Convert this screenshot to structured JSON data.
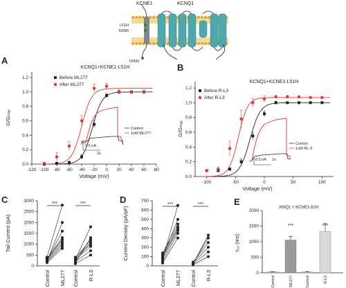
{
  "figure": {
    "topology": {
      "kcne1_label": "KCNE1",
      "kcnq1_label": "KCNQ1",
      "mutation_label": "L51H",
      "mutation_label2": "G60R",
      "bottom_label": "D90N"
    },
    "panels": [
      "A",
      "B",
      "C",
      "D",
      "E"
    ]
  },
  "chart_data": [
    {
      "panel": "A",
      "type": "scatter",
      "title": "KCNQ1+KCNE1-L51H",
      "xlabel": "Voltage (mV)",
      "ylabel": "G/Gₘₐₓ",
      "xlim": [
        -120,
        80
      ],
      "ylim": [
        0,
        1.2
      ],
      "xticks": [
        "-120",
        "-100",
        "-80",
        "-60",
        "-40",
        "-20",
        "0",
        "20",
        "40",
        "60",
        "80"
      ],
      "yticks": [
        "0.0",
        "0.2",
        "0.4",
        "0.6",
        "0.8",
        "1.0",
        "1.2"
      ],
      "legend": "top-left",
      "series": [
        {
          "name": "Before ML277",
          "color": "#222222",
          "x": [
            -100,
            -80,
            -60,
            -40,
            -20,
            0,
            20,
            40,
            60
          ],
          "y": [
            0.0,
            0.01,
            0.02,
            0.1,
            0.55,
            0.95,
            1.0,
            1.0,
            1.0
          ],
          "v50": -23,
          "k": 8
        },
        {
          "name": "After ML277",
          "color": "#e8332a",
          "x": [
            -100,
            -80,
            -60,
            -40,
            -20,
            0,
            20,
            40,
            60
          ],
          "y": [
            0.01,
            0.1,
            0.25,
            0.6,
            1.05,
            1.08,
            1.0,
            1.0,
            1.0
          ],
          "v50": -40,
          "k": 8
        }
      ],
      "inset": {
        "legend": [
          "Control",
          "1uM ML277"
        ],
        "scale_current": "0.5 nA",
        "scale_time": "1s"
      }
    },
    {
      "panel": "B",
      "type": "scatter",
      "title": "KCNQ1+KCNE1-L51H",
      "xlabel": "Voltage (mV)",
      "ylabel": "G/Gₘₐₓ",
      "xlim": [
        -120,
        120
      ],
      "ylim": [
        0,
        1.2
      ],
      "xticks": [
        "-100",
        "-50",
        "0",
        "50",
        "100"
      ],
      "yticks": [
        "0.0",
        "0.2",
        "0.4",
        "0.6",
        "0.8",
        "1.0",
        "1.2"
      ],
      "legend": "top-left",
      "series": [
        {
          "name": "Before R-L3",
          "color": "#222222",
          "x": [
            -100,
            -80,
            -60,
            -40,
            -20,
            0,
            20,
            40,
            60,
            80,
            100
          ],
          "y": [
            0.08,
            0.08,
            0.1,
            0.2,
            0.55,
            0.85,
            1.0,
            1.0,
            1.0,
            1.0,
            1.0
          ],
          "v50": -25,
          "k": 9
        },
        {
          "name": "After R-L3",
          "color": "#e8332a",
          "x": [
            -100,
            -80,
            -60,
            -40,
            -20,
            0,
            20,
            40,
            60,
            80,
            100
          ],
          "y": [
            0.08,
            0.1,
            0.38,
            0.78,
            1.0,
            1.05,
            1.08,
            1.08,
            1.08,
            1.07,
            1.07
          ],
          "v50": -45,
          "k": 8
        }
      ],
      "inset": {
        "legend": [
          "Control",
          "1uM RL-3"
        ],
        "scale_current": "0.5 nA",
        "scale_time": "1s"
      }
    },
    {
      "panel": "C",
      "type": "scatter",
      "xlabel": "",
      "ylabel": "Tail Current (pA)",
      "ylim": [
        0,
        3000
      ],
      "yticks": [
        "0",
        "500",
        "1000",
        "1500",
        "2000",
        "2500",
        "3000"
      ],
      "significance": [
        "***",
        "***"
      ],
      "pairs": [
        {
          "categories": [
            "Control",
            "ML277"
          ],
          "before": [
            150,
            200,
            250,
            300,
            350,
            300,
            250,
            200,
            400
          ],
          "after": [
            800,
            900,
            1000,
            1100,
            1200,
            1300,
            1600,
            2000,
            2800
          ]
        },
        {
          "categories": [
            "Control",
            "R-L3"
          ],
          "before": [
            100,
            200,
            300,
            400,
            250,
            350,
            150,
            300
          ],
          "after": [
            500,
            700,
            900,
            1000,
            1100,
            1200,
            1300,
            1800
          ]
        }
      ]
    },
    {
      "panel": "D",
      "type": "scatter",
      "xlabel": "",
      "ylabel": "Current Density (pA/pF)",
      "ylim": [
        0,
        700
      ],
      "yticks": [
        "0",
        "100",
        "200",
        "300",
        "400",
        "500",
        "600",
        "700"
      ],
      "significance": [
        "***",
        "***"
      ],
      "pairs": [
        {
          "categories": [
            "Control",
            "ML277"
          ],
          "before": [
            30,
            50,
            80,
            100,
            120,
            140,
            90,
            70
          ],
          "after": [
            300,
            350,
            380,
            400,
            420,
            450,
            500,
            650
          ]
        },
        {
          "categories": [
            "Control",
            "R-L3"
          ],
          "before": [
            10,
            20,
            30,
            40,
            30,
            20
          ],
          "after": [
            100,
            150,
            200,
            250,
            300,
            330
          ]
        }
      ]
    },
    {
      "panel": "E",
      "type": "bar",
      "title": "KNQ1 + KCNE1-51H",
      "xlabel": "",
      "ylabel": "τ₅₀ (ms)",
      "ylim": [
        0,
        2000
      ],
      "yticks": [
        "0",
        "500",
        "1000",
        "1500",
        "2000"
      ],
      "categories": [
        "Control",
        "ML277",
        "Control",
        "R-L3"
      ],
      "values": [
        30,
        1050,
        30,
        1330
      ],
      "errors": [
        10,
        120,
        10,
        250
      ],
      "colors": [
        "#bdbdbd",
        "#9a9a9a",
        "#bdbdbd",
        "#d9d9d9"
      ],
      "significance": [
        "***",
        "***"
      ]
    }
  ]
}
